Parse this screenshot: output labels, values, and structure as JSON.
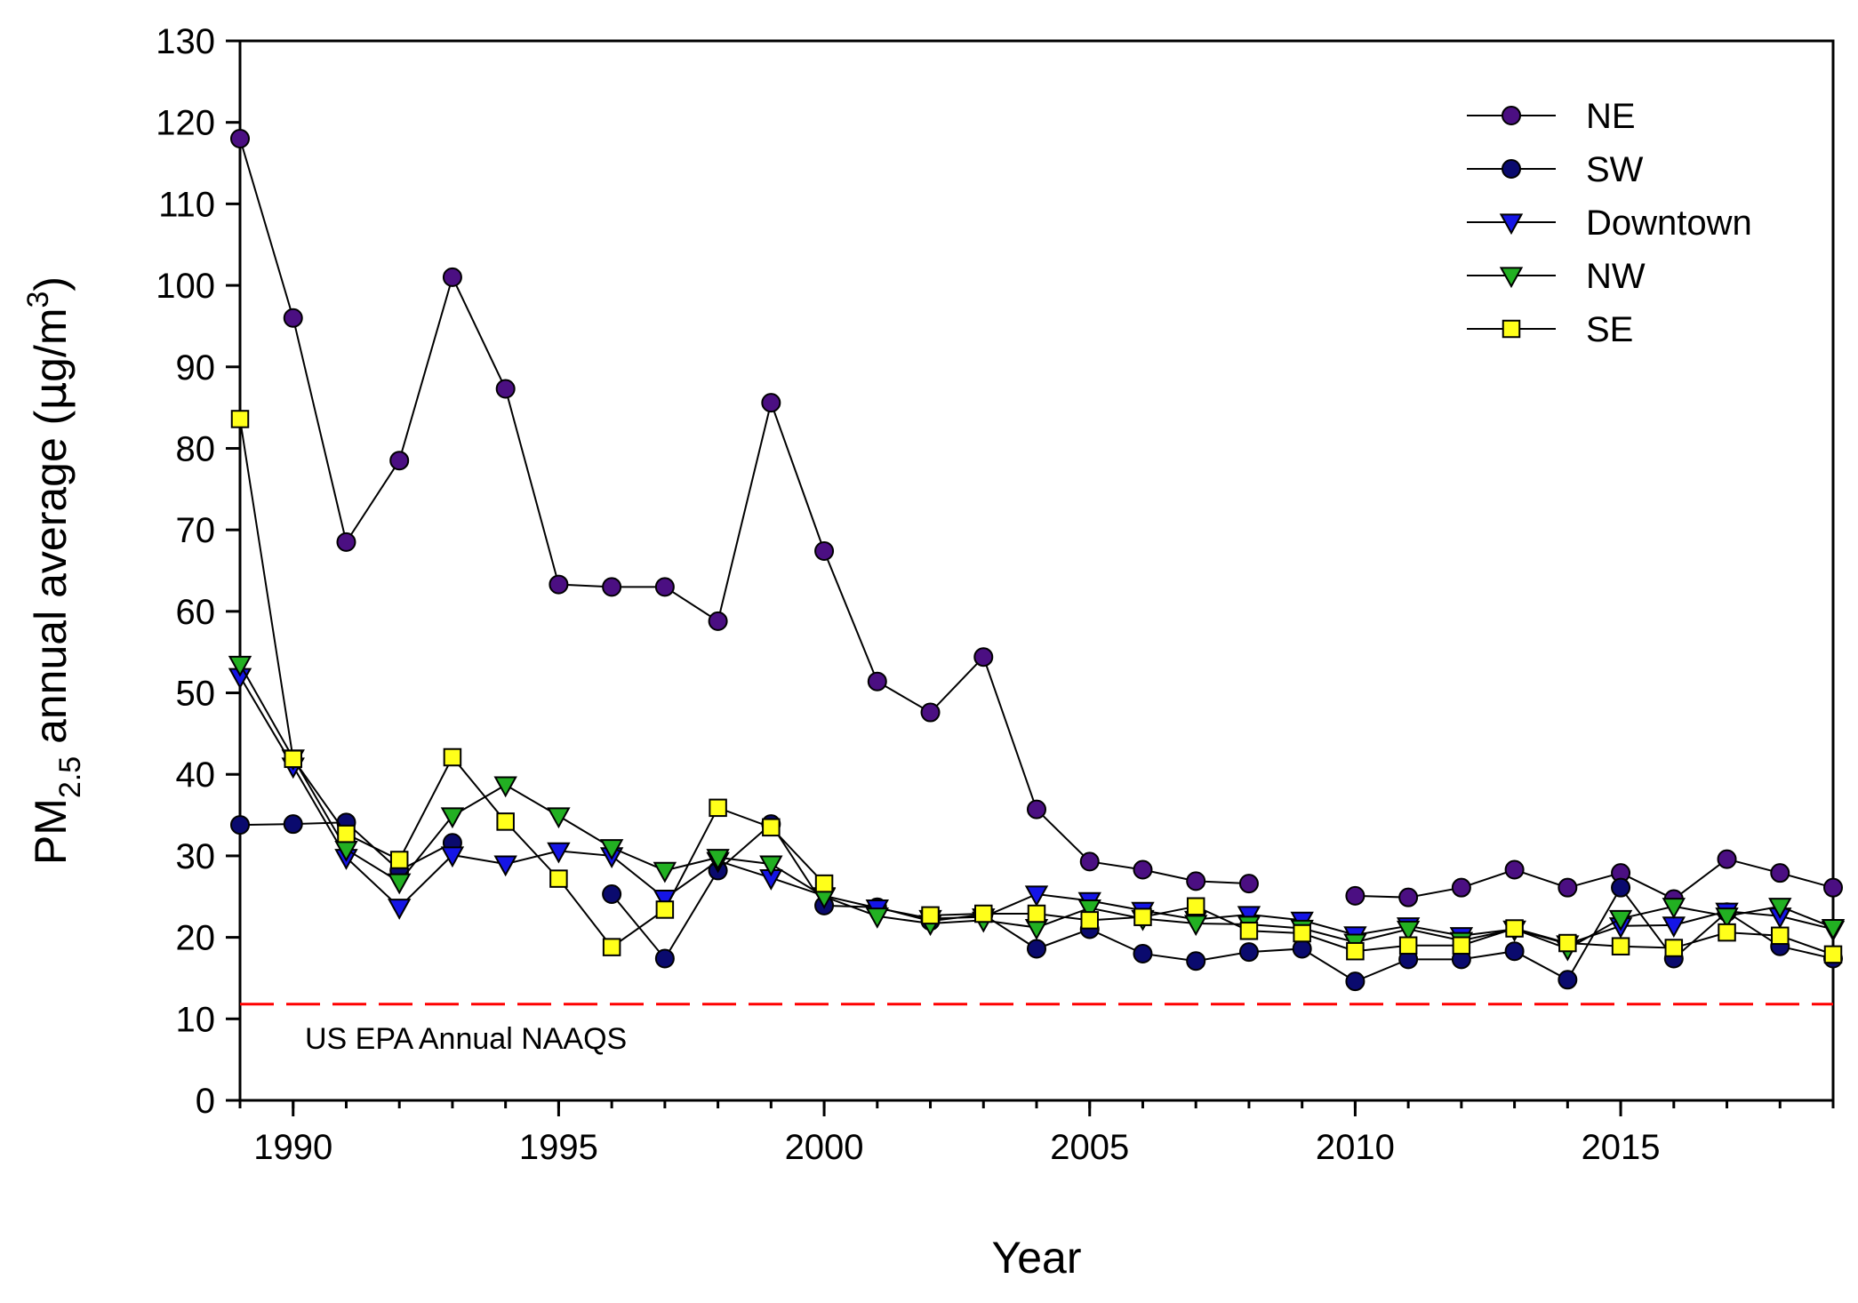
{
  "chart_data": {
    "type": "line",
    "title": "",
    "xlabel": "Year",
    "ylabel": {
      "main": "PM",
      "sub": "2.5",
      "rest": " annual average (",
      "mu": "μ",
      "unit": "g/m",
      "sup": "3",
      "close": ")"
    },
    "xlim": [
      1989,
      2019
    ],
    "ylim": [
      0,
      130
    ],
    "xticks": [
      1990,
      1995,
      2000,
      2005,
      2010,
      2015
    ],
    "yticks": [
      0,
      10,
      20,
      30,
      40,
      50,
      60,
      70,
      80,
      90,
      100,
      110,
      120,
      130
    ],
    "grid": false,
    "legend_position": "top-right",
    "x": [
      1989,
      1990,
      1991,
      1992,
      1993,
      1994,
      1995,
      1996,
      1997,
      1998,
      1999,
      2000,
      2001,
      2002,
      2003,
      2004,
      2005,
      2006,
      2007,
      2008,
      2009,
      2010,
      2011,
      2012,
      2013,
      2014,
      2015,
      2016,
      2017,
      2018,
      2019
    ],
    "series": [
      {
        "name": "NE",
        "marker": "circle",
        "color": "#4B0F82",
        "values": [
          118,
          96,
          68.5,
          78.5,
          101,
          87.3,
          63.3,
          63,
          63,
          58.8,
          85.6,
          67.4,
          51.4,
          47.6,
          54.4,
          35.7,
          29.3,
          28.3,
          26.9,
          26.6,
          null,
          25.1,
          24.9,
          26.1,
          28.3,
          26.1,
          27.9,
          24.7,
          29.6,
          27.9,
          26.1
        ]
      },
      {
        "name": "SW",
        "marker": "circle",
        "color": "#0A0A6E",
        "values": [
          33.8,
          33.9,
          34.1,
          28.2,
          31.6,
          null,
          null,
          25.3,
          17.4,
          28.2,
          33.9,
          23.9,
          23.7,
          22,
          22.8,
          18.6,
          21,
          18,
          17.1,
          18.2,
          18.6,
          14.6,
          17.3,
          17.3,
          18.3,
          14.8,
          26.1,
          17.4,
          23.1,
          18.9,
          17.4
        ]
      },
      {
        "name": "Downtown",
        "marker": "triangle-down",
        "color": "#1515E6",
        "values": [
          52,
          41,
          29.8,
          23.7,
          30.1,
          29,
          30.6,
          30,
          24.8,
          29.4,
          27.3,
          25.1,
          23.6,
          22.3,
          22.5,
          25.3,
          24.5,
          23.3,
          22.2,
          22.8,
          22.1,
          20.3,
          21.4,
          20.2,
          21,
          19.2,
          21.4,
          21.5,
          23.2,
          22.6,
          21
        ]
      },
      {
        "name": "NW",
        "marker": "triangle-down",
        "color": "#22B022",
        "values": [
          53.5,
          42,
          30.8,
          26.8,
          34.9,
          38.7,
          34.9,
          31,
          28.2,
          29.8,
          29,
          25,
          22.6,
          21.7,
          22.1,
          21.2,
          23.6,
          22.3,
          21.7,
          21.6,
          21.1,
          19.4,
          21,
          19.6,
          21,
          18.6,
          22.3,
          23.8,
          22.6,
          23.8,
          21.2
        ]
      },
      {
        "name": "SE",
        "marker": "square",
        "color": "#FFFF1A",
        "values": [
          83.6,
          41.9,
          32.7,
          29.5,
          42.1,
          34.2,
          27.2,
          18.8,
          23.4,
          35.9,
          33.5,
          26.6,
          null,
          22.7,
          22.9,
          22.9,
          22.1,
          22.5,
          23.8,
          20.8,
          20.5,
          18.3,
          19,
          19,
          21.1,
          19.3,
          18.9,
          18.7,
          20.6,
          20.2,
          17.9
        ]
      }
    ],
    "reference_line": {
      "value": 11.8,
      "label": "US EPA Annual NAAQS",
      "color": "#FF0000",
      "style": "dashed"
    }
  }
}
